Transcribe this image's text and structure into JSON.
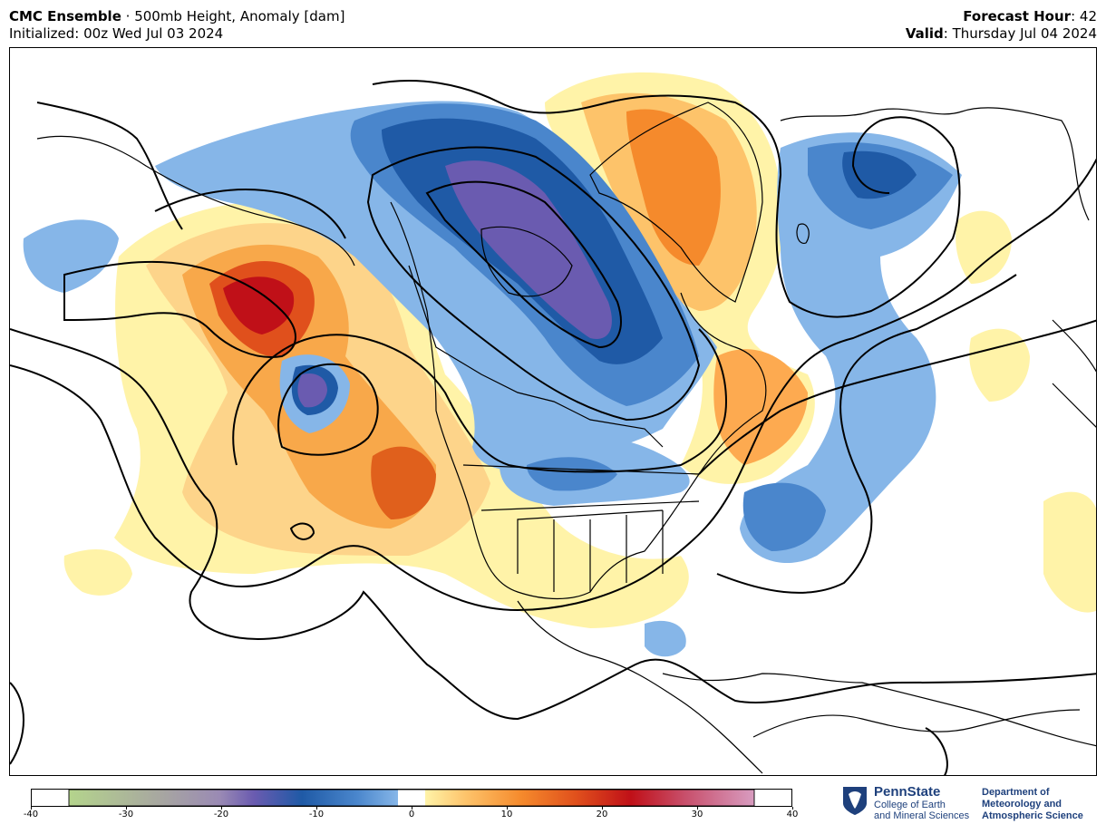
{
  "header": {
    "model": "CMC Ensemble",
    "separator": " · ",
    "product": "500mb Height, Anomaly [dam]",
    "initialized": "Initialized: 00z Wed Jul 03 2024",
    "forecast_hour_label": "Forecast Hour",
    "forecast_hour_value": ": 42",
    "valid_label": "Valid",
    "valid_value": ": Thursday Jul 04 2024"
  },
  "colorbar": {
    "min": -40,
    "max": 40,
    "tick_labels": [
      "-40",
      "-30",
      "-20",
      "-10",
      "0",
      "10",
      "20",
      "30",
      "40"
    ],
    "colors_negative": [
      "#b4d48c",
      "#a8a8a0",
      "#9a8ab4",
      "#6a5bb0",
      "#1f5aa6",
      "#4a86cc",
      "#86b6e8"
    ],
    "colors_positive": [
      "#fff3a8",
      "#fdc36a",
      "#f58a2c",
      "#e0501c",
      "#c01018",
      "#c8506c",
      "#d89cc0"
    ]
  },
  "logo": {
    "name": "PennState",
    "line1": "College of Earth",
    "line2": "and Mineral Sciences",
    "dept1": "Department of",
    "dept2": "Meteorology and",
    "dept3": "Atmospheric Science"
  }
}
